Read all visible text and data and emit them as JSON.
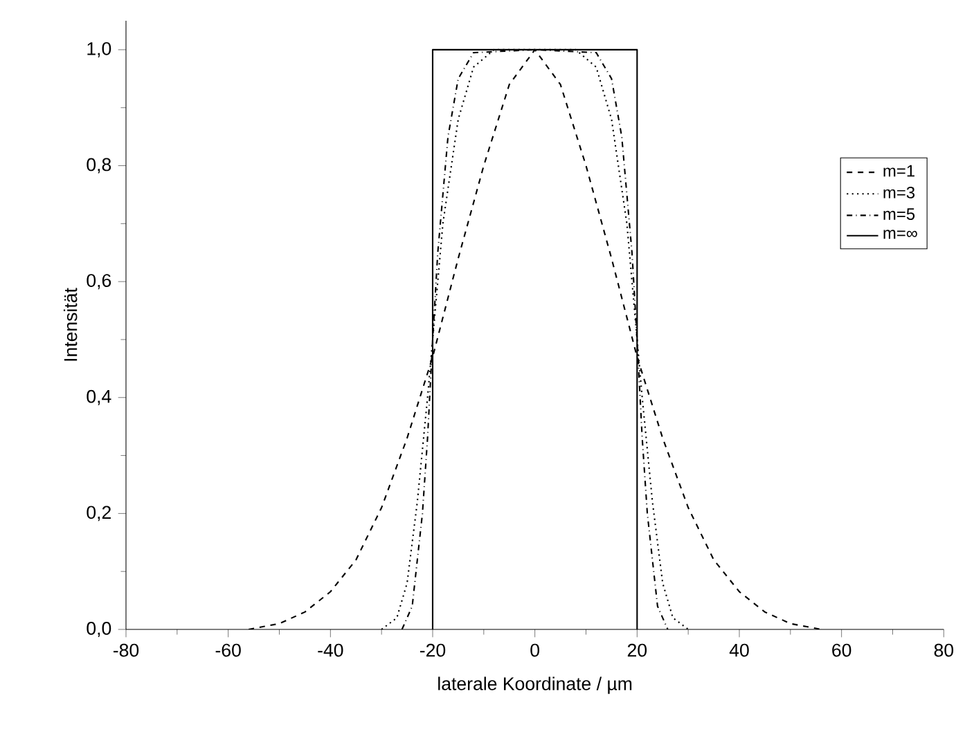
{
  "chart_data": {
    "type": "line",
    "xlabel": "laterale Koordinate / µm",
    "ylabel": "Intensität",
    "xlim": [
      -80,
      80
    ],
    "ylim": [
      0,
      1.05
    ],
    "xticks": [
      -80,
      -60,
      -40,
      -20,
      0,
      20,
      40,
      60,
      80
    ],
    "yticks": [
      {
        "value": 0,
        "label": "0,0"
      },
      {
        "value": 0.2,
        "label": "0,2"
      },
      {
        "value": 0.4,
        "label": "0,4"
      },
      {
        "value": 0.6,
        "label": "0,6"
      },
      {
        "value": 0.8,
        "label": "0,8"
      },
      {
        "value": 1.0,
        "label": "1,0"
      }
    ],
    "legend": "right",
    "series": [
      {
        "name": "m=1",
        "color": "#000000",
        "line_style": "dashed",
        "x": [
          -56,
          -50,
          -45,
          -40,
          -35,
          -30,
          -25,
          -20,
          -15,
          -10,
          -5,
          0,
          5,
          10,
          15,
          20,
          25,
          30,
          35,
          40,
          45,
          50,
          56
        ],
        "values": [
          0,
          0.01,
          0.03,
          0.065,
          0.12,
          0.21,
          0.33,
          0.47,
          0.64,
          0.8,
          0.94,
          1.0,
          0.94,
          0.8,
          0.64,
          0.47,
          0.33,
          0.21,
          0.12,
          0.065,
          0.03,
          0.01,
          0
        ]
      },
      {
        "name": "m=3",
        "color": "#000000",
        "line_style": "dotted",
        "x": [
          -30,
          -27,
          -25,
          -23,
          -21,
          -20,
          -18,
          -15,
          -12,
          -8,
          0,
          8,
          12,
          15,
          18,
          20,
          21,
          23,
          25,
          27,
          30
        ],
        "values": [
          0,
          0.02,
          0.08,
          0.22,
          0.4,
          0.5,
          0.7,
          0.88,
          0.97,
          1.0,
          1.0,
          1.0,
          0.97,
          0.88,
          0.7,
          0.5,
          0.4,
          0.22,
          0.08,
          0.02,
          0
        ]
      },
      {
        "name": "m=5",
        "color": "#000000",
        "line_style": "dashdot",
        "x": [
          -26,
          -24,
          -22,
          -21,
          -20,
          -19,
          -17,
          -15,
          -12,
          0,
          12,
          15,
          17,
          19,
          20,
          21,
          22,
          24,
          26
        ],
        "values": [
          0,
          0.04,
          0.2,
          0.33,
          0.5,
          0.65,
          0.85,
          0.95,
          0.995,
          1.0,
          0.995,
          0.95,
          0.85,
          0.65,
          0.5,
          0.33,
          0.2,
          0.04,
          0
        ]
      },
      {
        "name": "m=∞",
        "color": "#000000",
        "line_style": "solid",
        "x": [
          -20,
          -20,
          20,
          20
        ],
        "values": [
          0,
          1.0,
          1.0,
          0
        ]
      }
    ]
  }
}
